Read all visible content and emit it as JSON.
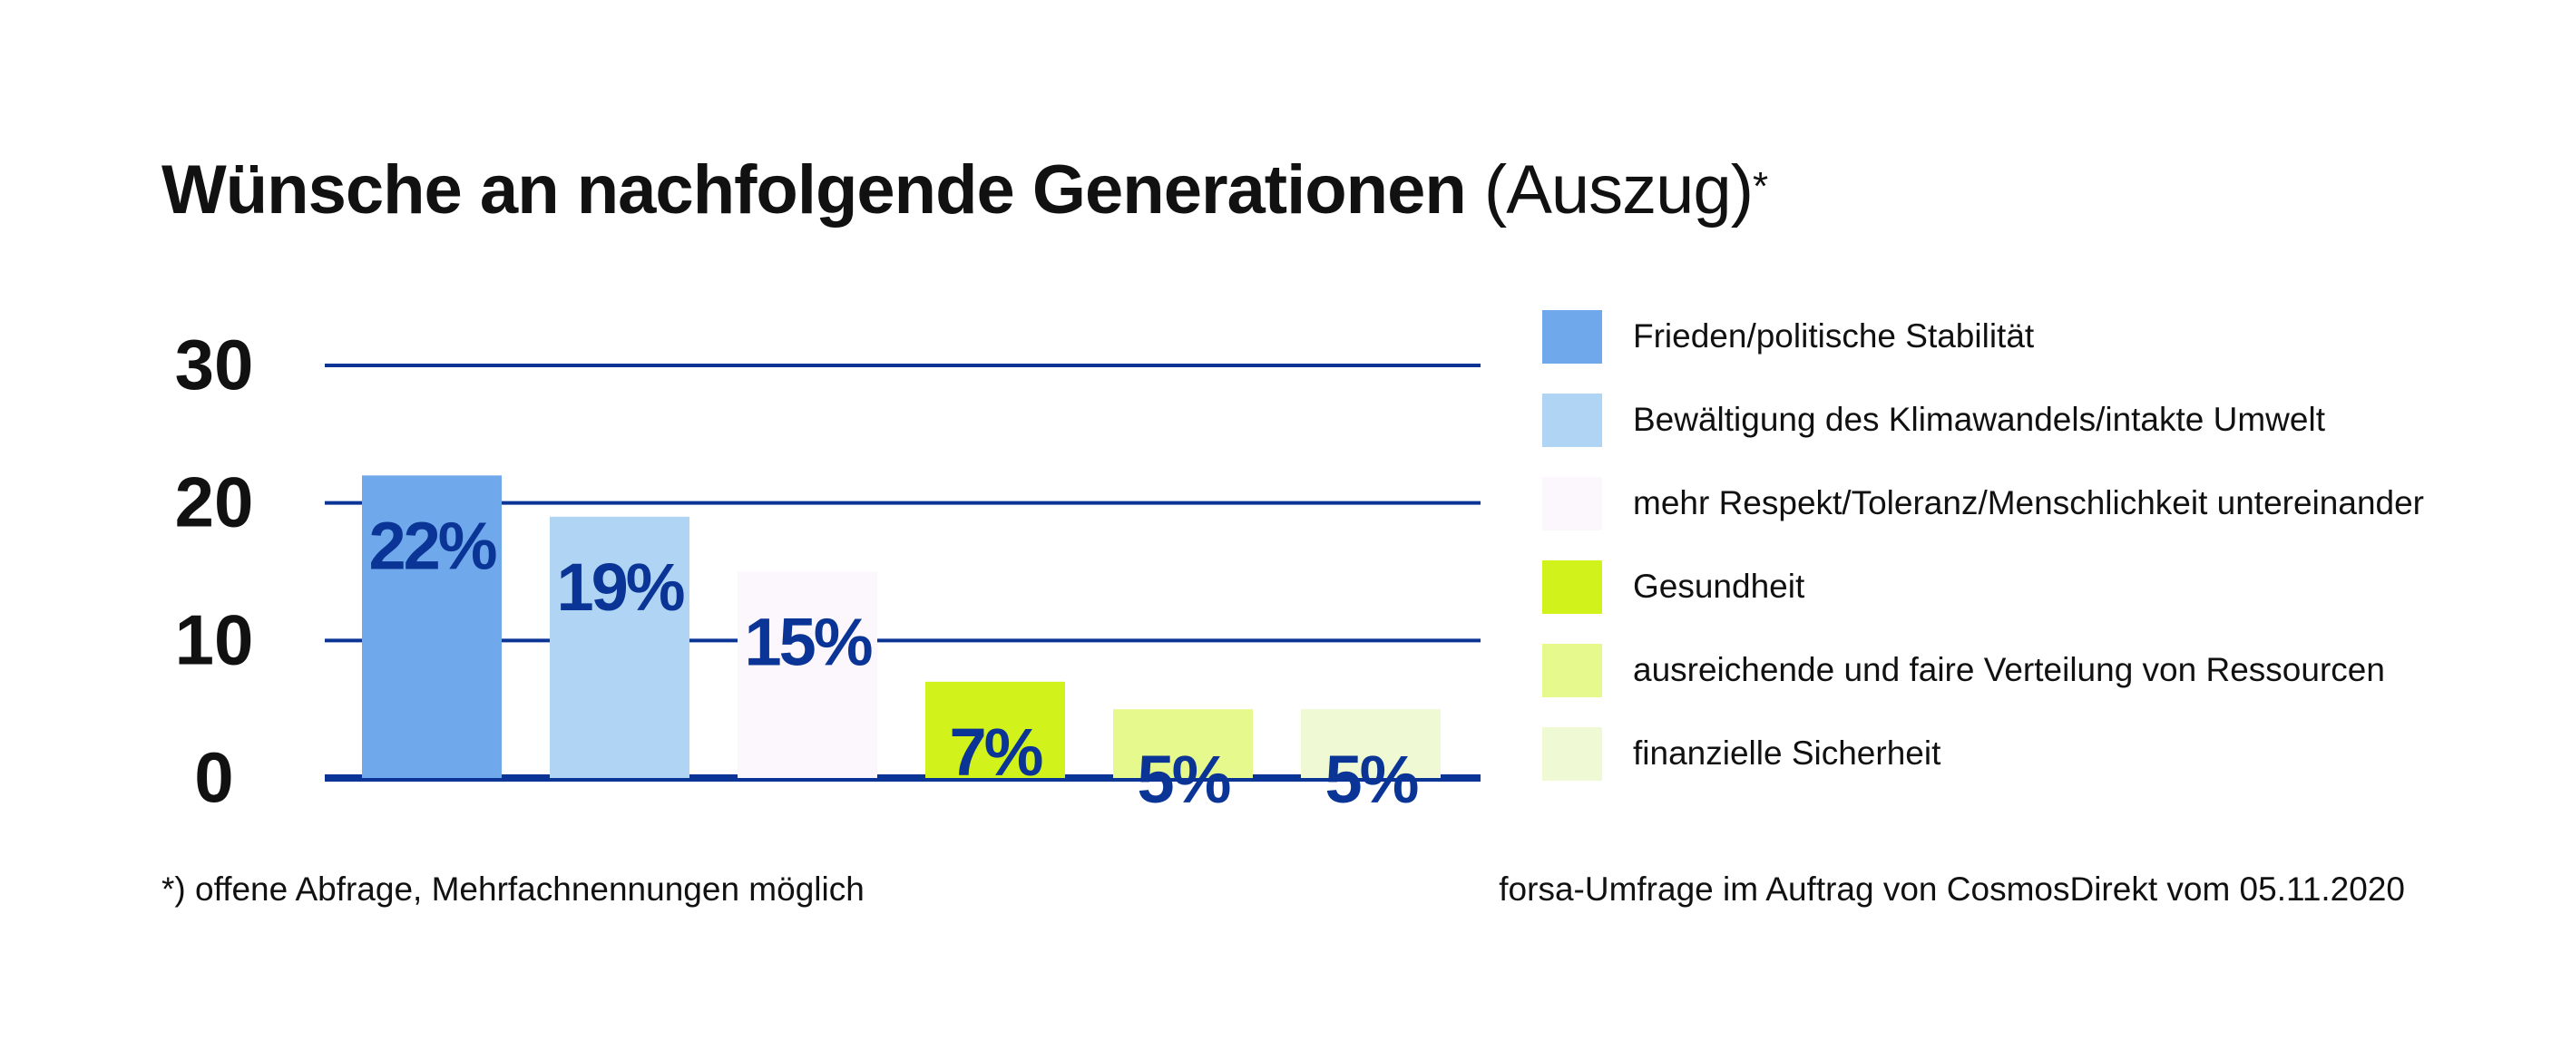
{
  "title": {
    "main": "Wünsche an nachfolgende Generationen",
    "sub": "(Auszug)",
    "marker": "*"
  },
  "footnote": "*) offene Abfrage, Mehrfachnennungen möglich",
  "source": "forsa-Umfrage im Auftrag von CosmosDirekt vom 05.11.2020",
  "colors": {
    "gridline": "#0a3596",
    "value_label": "#0a3596"
  },
  "chart_data": {
    "type": "bar",
    "title": "Wünsche an nachfolgende Generationen (Auszug)*",
    "categories": [
      "Frieden/politische Stabilität",
      "Bewältigung des Klimawandels/intakte Umwelt",
      "mehr Respekt/Toleranz/Menschlichkeit untereinander",
      "Gesundheit",
      "ausreichende und faire Verteilung von Ressourcen",
      "finanzielle Sicherheit"
    ],
    "values": [
      22,
      19,
      15,
      7,
      5,
      5
    ],
    "value_labels": [
      "22%",
      "19%",
      "15%",
      "7%",
      "5%",
      "5%"
    ],
    "colors": [
      "#6fa9eb",
      "#afd4f4",
      "#fbf7fc",
      "#d2f21b",
      "#e6f98d",
      "#eff9d4"
    ],
    "ylim": [
      0,
      30
    ],
    "yticks": [
      0,
      10,
      20,
      30
    ],
    "grid": true,
    "legend_position": "right",
    "xlabel": "",
    "ylabel": ""
  }
}
